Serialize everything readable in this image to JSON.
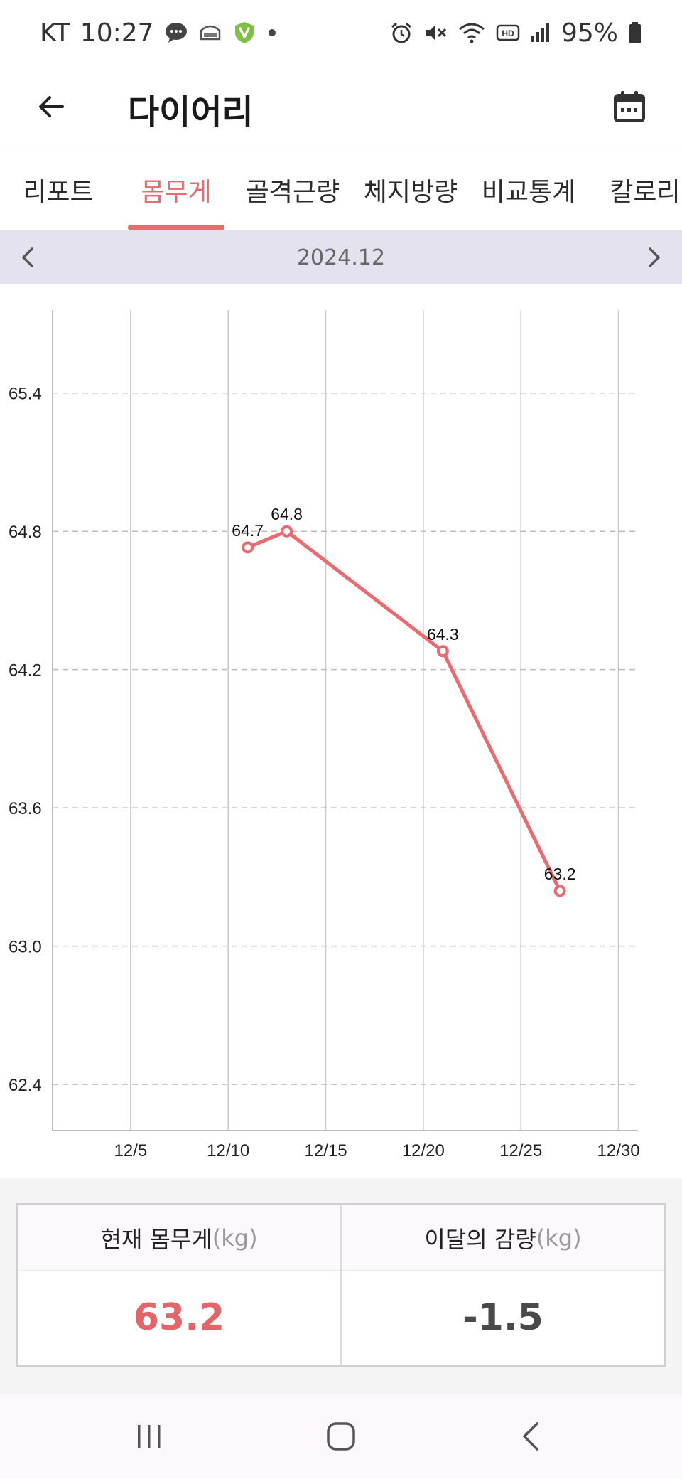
{
  "status_bar": {
    "carrier": "KT",
    "time": "10:27",
    "battery": "95%",
    "icons": [
      "chat-icon",
      "app-icon",
      "vaccine-shield-icon",
      "dot-icon",
      "alarm-icon",
      "mute-icon",
      "wifi-icon",
      "hd-icon",
      "signal-icon",
      "battery-icon"
    ]
  },
  "header": {
    "title": "다이어리"
  },
  "tabs": [
    {
      "label": "리포트",
      "active": false
    },
    {
      "label": "몸무게",
      "active": true
    },
    {
      "label": "골격근량",
      "active": false
    },
    {
      "label": "체지방량",
      "active": false
    },
    {
      "label": "비교통계",
      "active": false
    },
    {
      "label": "칼로리",
      "active": false
    }
  ],
  "month_nav": {
    "label": "2024.12"
  },
  "chart_data": {
    "type": "line",
    "x_ticks": [
      "12/5",
      "12/10",
      "12/15",
      "12/20",
      "12/25",
      "12/30"
    ],
    "y_ticks": [
      "62.4",
      "63.0",
      "63.6",
      "64.2",
      "64.8",
      "65.4"
    ],
    "xlim": [
      1,
      31
    ],
    "ylim": [
      62.2,
      65.76
    ],
    "series": [
      {
        "color": "#ec6a6f",
        "points": [
          {
            "x": 11,
            "y": 64.73,
            "label": "64.7"
          },
          {
            "x": 13,
            "y": 64.8,
            "label": "64.8"
          },
          {
            "x": 21,
            "y": 64.28,
            "label": "64.3"
          },
          {
            "x": 27,
            "y": 63.24,
            "label": "63.2"
          }
        ]
      }
    ],
    "grid": true
  },
  "summary": {
    "current": {
      "label": "현재 몸무게",
      "unit": "(kg)",
      "value": "63.2"
    },
    "monthly_loss": {
      "label": "이달의 감량",
      "unit": "(kg)",
      "value": "-1.5"
    }
  },
  "colors": {
    "accent": "#ec6a6f",
    "month_bar": "#e4e2ee"
  }
}
